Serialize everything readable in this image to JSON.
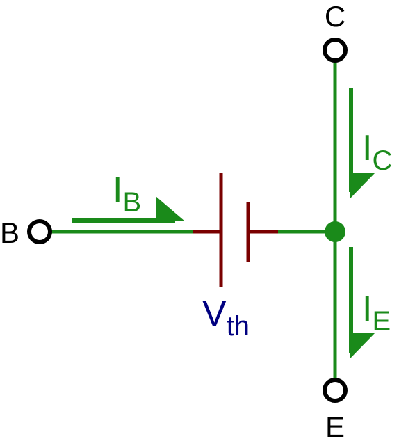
{
  "terminals": {
    "collector": "C",
    "base": "B",
    "emitter": "E"
  },
  "currents": {
    "base": {
      "main": "I",
      "sub": "B"
    },
    "collector": {
      "main": "I",
      "sub": "C"
    },
    "emitter": {
      "main": "I",
      "sub": "E"
    }
  },
  "source": {
    "main": "V",
    "sub": "th"
  },
  "colors": {
    "wire": "#1a8a1a",
    "battery": "#7a0000",
    "source_label": "#000080",
    "terminal": "#000000"
  }
}
